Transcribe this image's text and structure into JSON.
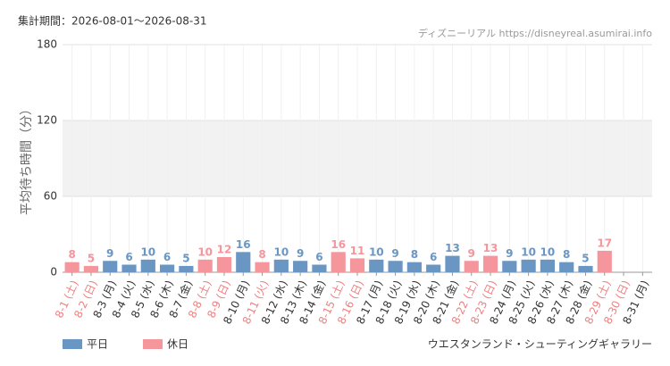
{
  "chart_data": {
    "type": "bar",
    "title": "集計期間：2026-08-01～2026-08-31",
    "source": "ディズニーリアル https://disneyreal.asumirai.info",
    "y_label": "平均待ち時間（分）",
    "footer": "ウエスタンランド・シューティングギャラリー",
    "categories": [
      "8-1 (土)",
      "8-2 (日)",
      "8-3 (月)",
      "8-4 (火)",
      "8-5 (水)",
      "8-6 (木)",
      "8-7 (金)",
      "8-8 (土)",
      "8-9 (日)",
      "8-10 (月)",
      "8-11 (火)",
      "8-12 (水)",
      "8-13 (木)",
      "8-14 (金)",
      "8-15 (土)",
      "8-16 (日)",
      "8-17 (月)",
      "8-18 (火)",
      "8-19 (水)",
      "8-20 (木)",
      "8-21 (金)",
      "8-22 (土)",
      "8-23 (日)",
      "8-24 (月)",
      "8-25 (火)",
      "8-26 (水)",
      "8-27 (木)",
      "8-28 (金)",
      "8-29 (土)",
      "8-30 (日)",
      "8-31 (月)"
    ],
    "category_colors": [
      "#f08080",
      "#f08080",
      "#333333",
      "#333333",
      "#333333",
      "#333333",
      "#333333",
      "#f08080",
      "#f08080",
      "#333333",
      "#f08080",
      "#333333",
      "#333333",
      "#333333",
      "#f08080",
      "#f08080",
      "#333333",
      "#333333",
      "#333333",
      "#333333",
      "#333333",
      "#f08080",
      "#f08080",
      "#333333",
      "#333333",
      "#333333",
      "#333333",
      "#333333",
      "#f08080",
      "#f08080",
      "#333333"
    ],
    "series": [
      {
        "name": "平日",
        "color": "#6a96c4",
        "values": [
          null,
          null,
          9,
          6,
          10,
          6,
          5,
          null,
          null,
          16,
          null,
          10,
          9,
          6,
          null,
          null,
          10,
          9,
          8,
          6,
          13,
          null,
          null,
          9,
          10,
          10,
          8,
          5,
          null,
          null,
          null
        ]
      },
      {
        "name": "休日",
        "color": "#f4969c",
        "values": [
          8,
          5,
          null,
          null,
          null,
          null,
          null,
          10,
          12,
          null,
          8,
          null,
          null,
          null,
          16,
          11,
          null,
          null,
          null,
          null,
          null,
          9,
          13,
          null,
          null,
          null,
          null,
          null,
          17,
          null,
          null
        ]
      }
    ],
    "ylim": [
      0,
      180
    ],
    "yticks": [
      0,
      60,
      120,
      180
    ],
    "grid": true
  }
}
